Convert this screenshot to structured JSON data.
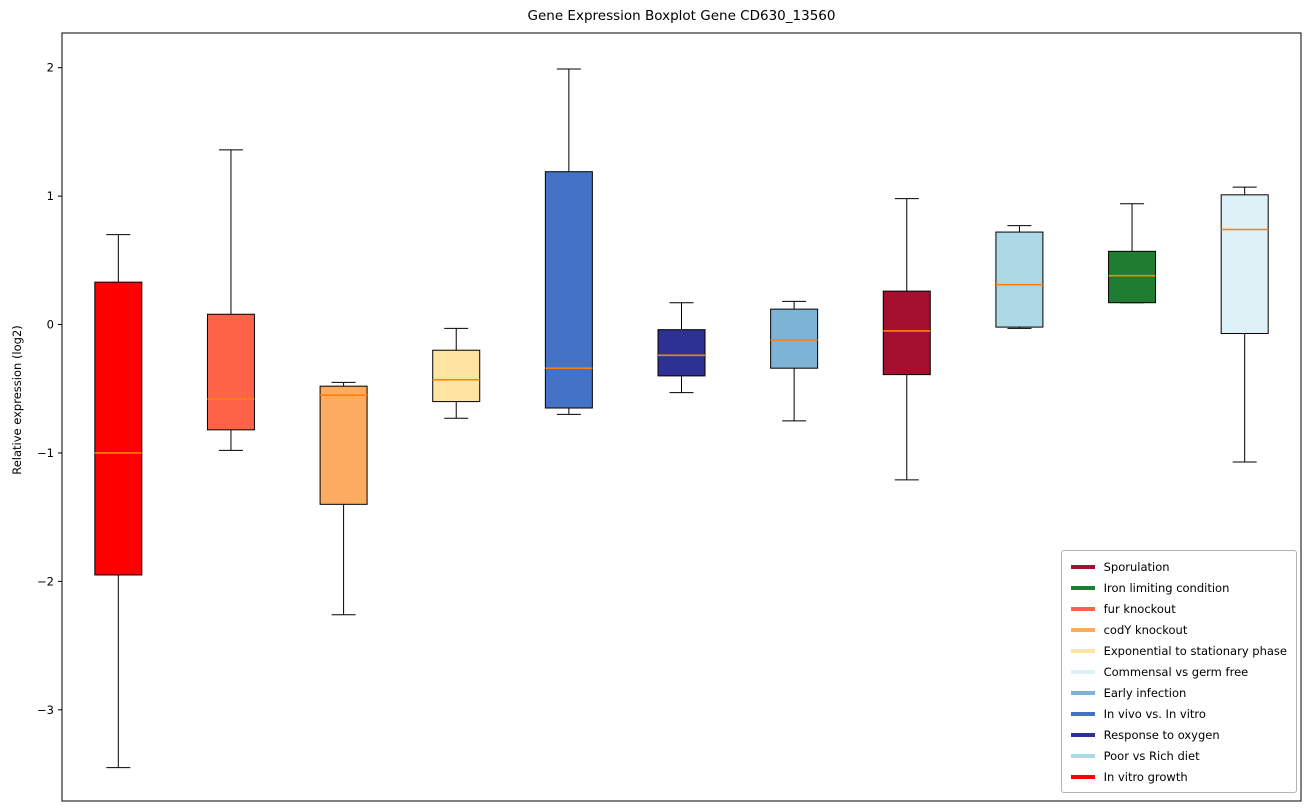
{
  "chart_data": {
    "type": "box",
    "title": "Gene Expression Boxplot Gene CD630_13560",
    "xlabel": "",
    "ylabel": "Relative expression (log2)",
    "ylim": [
      -3.71,
      2.27
    ],
    "yticks": [
      2,
      1,
      0,
      -1,
      -2,
      -3
    ],
    "grid": false,
    "median_color": "#ff7f0e",
    "whisker_color": "#000000",
    "box_edge_color": "#000000",
    "legend_position": "lower right",
    "series": [
      {
        "name": "In vitro growth",
        "color": "#ff0000",
        "whisker_low": -3.45,
        "q1": -1.95,
        "median": -1.0,
        "q3": 0.33,
        "whisker_high": 0.7
      },
      {
        "name": "fur knockout",
        "color": "#ff6347",
        "whisker_low": -0.98,
        "q1": -0.82,
        "median": -0.58,
        "q3": 0.08,
        "whisker_high": 1.36
      },
      {
        "name": "codY knockout",
        "color": "#fcab60",
        "whisker_low": -2.26,
        "q1": -1.4,
        "median": -0.55,
        "q3": -0.48,
        "whisker_high": -0.45
      },
      {
        "name": "Exponential to stationary phase",
        "color": "#ffe3a1",
        "whisker_low": -0.73,
        "q1": -0.6,
        "median": -0.43,
        "q3": -0.2,
        "whisker_high": -0.03
      },
      {
        "name": "In vivo vs. In vitro",
        "color": "#4472c4",
        "whisker_low": -0.7,
        "q1": -0.65,
        "median": -0.34,
        "q3": 1.19,
        "whisker_high": 1.99
      },
      {
        "name": "Response to oxygen",
        "color": "#2d3193",
        "whisker_low": -0.53,
        "q1": -0.4,
        "median": -0.24,
        "q3": -0.04,
        "whisker_high": 0.17
      },
      {
        "name": "Early infection",
        "color": "#7eb3d8",
        "whisker_low": -0.75,
        "q1": -0.34,
        "median": -0.12,
        "q3": 0.12,
        "whisker_high": 0.18
      },
      {
        "name": "Sporulation",
        "color": "#a50f2f",
        "whisker_low": -1.21,
        "q1": -0.39,
        "median": -0.05,
        "q3": 0.26,
        "whisker_high": 0.98
      },
      {
        "name": "Poor vs Rich diet",
        "color": "#add8e6",
        "whisker_low": -0.03,
        "q1": -0.02,
        "median": 0.31,
        "q3": 0.72,
        "whisker_high": 0.77
      },
      {
        "name": "Iron limiting condition",
        "color": "#1f7d31",
        "whisker_low": 0.17,
        "q1": 0.17,
        "median": 0.38,
        "q3": 0.57,
        "whisker_high": 0.94
      },
      {
        "name": "Commensal vs germ free",
        "color": "#ddf1f6",
        "whisker_low": -1.07,
        "q1": -0.07,
        "median": 0.74,
        "q3": 1.01,
        "whisker_high": 1.07
      }
    ],
    "legend_order": [
      "Sporulation",
      "Iron limiting condition",
      "fur knockout",
      "codY knockout",
      "Exponential to stationary phase",
      "Commensal vs germ free",
      "Early infection",
      "In vivo vs. In vitro",
      "Response to oxygen",
      "Poor vs Rich diet",
      "In vitro growth"
    ]
  }
}
